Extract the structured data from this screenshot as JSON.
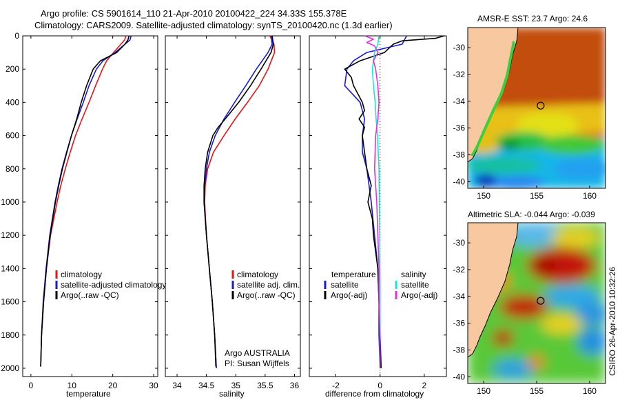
{
  "header": {
    "line1": "Argo profile: CS 5901614_110 21-Apr-2010 20100422_224 34.33S 155.378E",
    "line2": "Climatology: CARS2009. Satellite-adjusted climatology: synTS_20100420.nc (1.3d earlier)"
  },
  "colors": {
    "climatology": "#ee1111",
    "satellite": "#1818d8",
    "argo": "#000000",
    "sat_salinity": "#19e3e3",
    "argo_salinity": "#e62ee0",
    "land": "#f8c8a0",
    "coast": "#000000"
  },
  "chart_data": [
    {
      "id": "temperature",
      "type": "line",
      "xlabel": "temperature",
      "ylim": [
        0,
        2050
      ],
      "xlim": [
        -2,
        31
      ],
      "yreverse": true,
      "xticks": [
        0,
        10,
        20,
        30
      ],
      "yticks": [
        0,
        200,
        400,
        600,
        800,
        1000,
        1200,
        1400,
        1600,
        1800,
        2000
      ],
      "legend": [
        "climatology",
        "satellite-adjusted climatology",
        "Argo(..raw -QC)"
      ],
      "series": [
        {
          "name": "climatology",
          "color": "#ee1111",
          "y": [
            0,
            25,
            50,
            100,
            150,
            200,
            300,
            400,
            500,
            600,
            700,
            800,
            900,
            1000,
            1200,
            1400,
            1600,
            1800,
            1990
          ],
          "x": [
            23.2,
            22.9,
            22.0,
            20.2,
            18.5,
            17.5,
            15.8,
            14.2,
            12.5,
            10.9,
            9.6,
            8.4,
            7.3,
            6.4,
            4.8,
            3.8,
            3.1,
            2.6,
            2.4
          ]
        },
        {
          "name": "satellite-adjusted climatology",
          "color": "#1818d8",
          "y": [
            0,
            25,
            50,
            100,
            150,
            200,
            300,
            400,
            500,
            600,
            700,
            800,
            900,
            1000,
            1200,
            1400,
            1600,
            1800,
            1990
          ],
          "x": [
            24.5,
            24.2,
            23.0,
            20.6,
            17.6,
            16.0,
            14.2,
            12.8,
            11.3,
            9.9,
            8.7,
            7.6,
            6.7,
            5.9,
            4.6,
            3.7,
            3.0,
            2.6,
            2.4
          ]
        },
        {
          "name": "Argo(..raw -QC)",
          "color": "#000000",
          "y": [
            0,
            25,
            50,
            100,
            150,
            200,
            300,
            400,
            500,
            600,
            700,
            800,
            900,
            1000,
            1200,
            1400,
            1600,
            1800,
            1990
          ],
          "x": [
            24.0,
            23.7,
            23.0,
            21.0,
            17.0,
            15.2,
            13.6,
            12.3,
            11.2,
            9.9,
            8.8,
            7.7,
            6.8,
            6.0,
            4.7,
            3.8,
            3.1,
            2.6,
            2.4
          ]
        }
      ]
    },
    {
      "id": "salinity",
      "type": "line",
      "xlabel": "salinity",
      "ylim": [
        0,
        2050
      ],
      "xlim": [
        33.8,
        36.1
      ],
      "yreverse": true,
      "xticks": [
        34,
        34.5,
        35,
        35.5,
        36
      ],
      "legend": [
        "climatology",
        "satellite adj. clim.",
        "Argo(..raw -QC)"
      ],
      "annotation": [
        "Argo AUSTRALIA",
        "PI: Susan Wijffels"
      ],
      "series": [
        {
          "name": "climatology",
          "color": "#ee1111",
          "y": [
            0,
            50,
            100,
            200,
            300,
            400,
            500,
            600,
            700,
            800,
            900,
            1000,
            1200,
            1400,
            1600,
            1800,
            2000
          ],
          "x": [
            35.58,
            35.65,
            35.66,
            35.55,
            35.4,
            35.2,
            34.99,
            34.8,
            34.62,
            34.52,
            34.48,
            34.47,
            34.5,
            34.55,
            34.6,
            34.64,
            34.67
          ]
        },
        {
          "name": "satellite adj. clim.",
          "color": "#1818d8",
          "y": [
            0,
            50,
            100,
            200,
            300,
            400,
            500,
            600,
            700,
            800,
            900,
            1000,
            1200,
            1400,
            1600,
            1800,
            2000
          ],
          "x": [
            35.6,
            35.62,
            35.55,
            35.35,
            35.17,
            34.98,
            34.8,
            34.65,
            34.55,
            34.5,
            34.47,
            34.46,
            34.5,
            34.55,
            34.6,
            34.64,
            34.67
          ]
        },
        {
          "name": "Argo(..raw -QC)",
          "color": "#000000",
          "y": [
            0,
            50,
            100,
            200,
            300,
            400,
            500,
            550,
            600,
            700,
            800,
            900,
            1000,
            1200,
            1400,
            1600,
            1800,
            1990
          ],
          "x": [
            35.62,
            35.64,
            35.6,
            35.43,
            35.25,
            35.05,
            34.82,
            34.7,
            34.61,
            34.52,
            34.48,
            34.46,
            34.46,
            34.5,
            34.55,
            34.6,
            34.64,
            34.66
          ]
        }
      ]
    },
    {
      "id": "difference",
      "type": "line",
      "xlabel": "difference from climatology",
      "ylim": [
        0,
        2050
      ],
      "xlim": [
        -3.2,
        3.0
      ],
      "yreverse": true,
      "xticks": [
        -2,
        0,
        2
      ],
      "legend": [
        "temperature",
        "satellite",
        "Argo(-adj)",
        "salinity",
        "satellite",
        "Argo(-adj)"
      ],
      "series": [
        {
          "name": "satellite",
          "color": "#1818d8",
          "y": [
            0,
            50,
            100,
            150,
            200,
            300,
            400,
            500,
            600,
            700,
            800,
            900,
            1000,
            1200,
            1400,
            1600,
            1800,
            2000
          ],
          "x": [
            1.2,
            1.0,
            -0.6,
            -1.2,
            -1.5,
            -1.6,
            -0.9,
            -0.7,
            -0.8,
            -0.8,
            -0.6,
            -0.5,
            -0.4,
            -0.25,
            -0.1,
            -0.05,
            -0.05,
            0.0
          ]
        },
        {
          "name": "Argo(-adj)",
          "color": "#000000",
          "y": [
            0,
            15,
            30,
            50,
            100,
            150,
            200,
            250,
            300,
            350,
            400,
            450,
            500,
            550,
            600,
            700,
            800,
            900,
            1000,
            1100,
            1200,
            1400,
            1600,
            1800,
            2000
          ],
          "x": [
            2.9,
            2.5,
            1.0,
            0.6,
            0.2,
            -0.9,
            -1.6,
            -1.3,
            -1.2,
            -1.0,
            -0.8,
            -0.7,
            -0.95,
            -0.7,
            -0.8,
            -0.7,
            -0.6,
            -0.4,
            -0.55,
            -0.35,
            -0.3,
            -0.1,
            -0.05,
            0.0,
            0.05
          ]
        },
        {
          "name": "satellite",
          "color": "#19e3e3",
          "y": [
            0,
            50,
            100,
            200,
            300,
            400,
            500,
            600,
            800,
            1000,
            1500,
            2000
          ],
          "x": [
            -0.05,
            -0.1,
            -0.25,
            -0.35,
            -0.3,
            -0.22,
            -0.18,
            -0.12,
            -0.05,
            -0.03,
            0.0,
            0.0
          ]
        },
        {
          "name": "Argo(-adj)",
          "color": "#e62ee0",
          "y": [
            0,
            20,
            40,
            60,
            100,
            150,
            200,
            300,
            400,
            500,
            600,
            800,
            1000,
            1200,
            1400,
            1600,
            1800,
            2000
          ],
          "x": [
            -0.7,
            -0.3,
            -0.6,
            -0.25,
            -0.1,
            -0.3,
            -0.2,
            -0.1,
            -0.05,
            -0.1,
            -0.2,
            -0.25,
            -0.15,
            -0.1,
            -0.05,
            -0.05,
            0.0,
            0.0
          ]
        }
      ]
    },
    {
      "id": "sst-map",
      "type": "heatmap",
      "title": "AMSR-E SST: 23.7 Argo: 24.6",
      "xlim": [
        148.5,
        161.5
      ],
      "ylim": [
        -40.5,
        -28.5
      ],
      "xticks": [
        150,
        155,
        160
      ],
      "yticks": [
        -30,
        -32,
        -34,
        -36,
        -38,
        -40
      ],
      "marker": {
        "lon": 155.378,
        "lat": -34.33
      }
    },
    {
      "id": "sla-map",
      "type": "heatmap",
      "title": "Altimetric SLA: -0.044 Argo: -0.039",
      "xlim": [
        148.5,
        161.5
      ],
      "ylim": [
        -40.5,
        -28.5
      ],
      "xticks": [
        150,
        155,
        160
      ],
      "yticks": [
        -30,
        -32,
        -34,
        -36,
        -38,
        -40
      ],
      "marker": {
        "lon": 155.378,
        "lat": -34.33
      }
    }
  ],
  "credit": "CSIRO 26-Apr-2010 10:32:26"
}
